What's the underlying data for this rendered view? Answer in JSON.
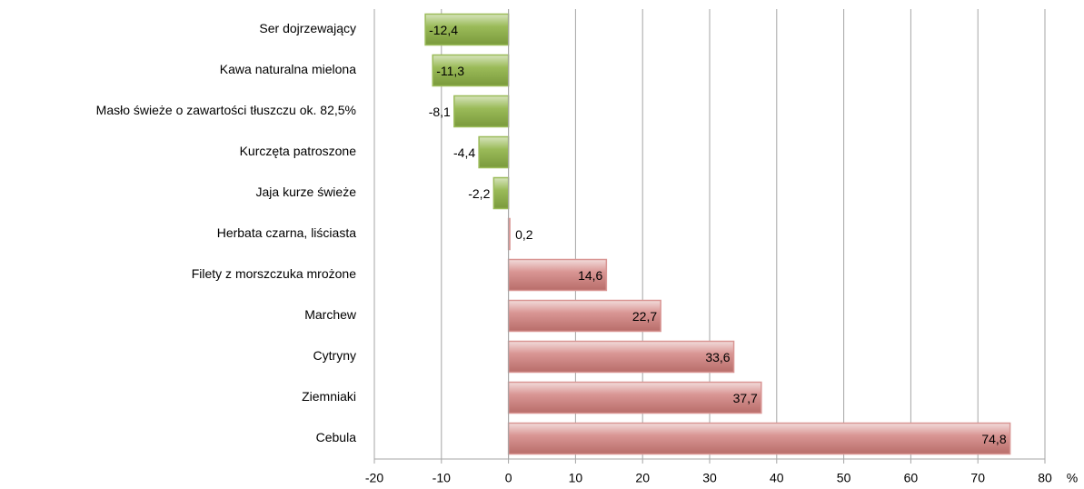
{
  "chart_data": {
    "type": "barh",
    "categories": [
      "Ser dojrzewający",
      "Kawa naturalna mielona",
      "Masło świeże o zawartości tłuszczu ok. 82,5%",
      "Kurczęta patroszone",
      "Jaja kurze świeże",
      "Herbata czarna, liściasta",
      "Filety z morszczuka mrożone",
      "Marchew",
      "Cytryny",
      "Ziemniaki",
      "Cebula"
    ],
    "values": [
      -12.4,
      -11.3,
      -8.1,
      -4.4,
      -2.2,
      0.2,
      14.6,
      22.7,
      33.6,
      37.7,
      74.8
    ],
    "value_labels": [
      "-12,4",
      "-11,3",
      "-8,1",
      "-4,4",
      "-2,2",
      "0,2",
      "14,6",
      "22,7",
      "33,6",
      "37,7",
      "74,8"
    ],
    "colors": {
      "negative": "#9bbb59",
      "positive": "#d99694"
    },
    "x_unit": "%",
    "xlim": [
      -20,
      80
    ],
    "xticks": [
      -20,
      -10,
      0,
      10,
      20,
      30,
      40,
      50,
      60,
      70,
      80
    ],
    "grid": true
  }
}
